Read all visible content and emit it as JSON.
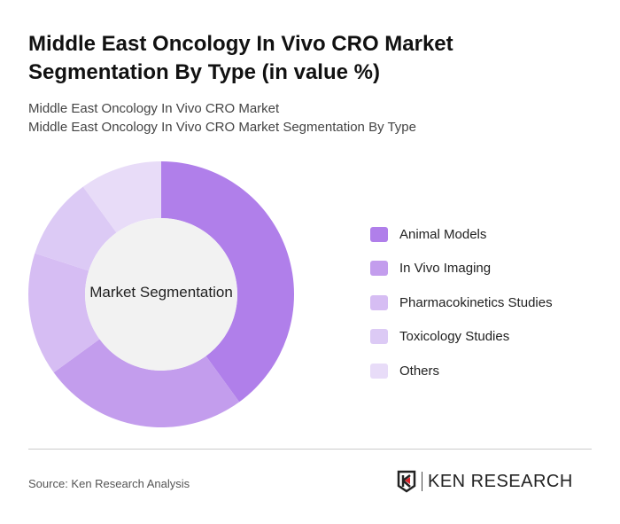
{
  "title": "Middle East Oncology In Vivo CRO Market Segmentation By Type (in value %)",
  "subtitle1": "Middle East Oncology In Vivo CRO Market",
  "subtitle2": "Middle East Oncology In Vivo CRO Market Segmentation By Type",
  "source": "Source: Ken Research Analysis",
  "logo_text": "KEN RESEARCH",
  "chart_data": {
    "type": "pie",
    "variant": "donut",
    "center_label": "Market Segmentation",
    "categories": [
      "Animal Models",
      "In Vivo Imaging",
      "Pharmacokinetics Studies",
      "Toxicology Studies",
      "Others"
    ],
    "values": [
      40,
      25,
      15,
      10,
      10
    ],
    "colors": [
      "#b07fea",
      "#c39ded",
      "#d6bdf3",
      "#dccaf5",
      "#e8dcf8"
    ],
    "legend_position": "right"
  }
}
